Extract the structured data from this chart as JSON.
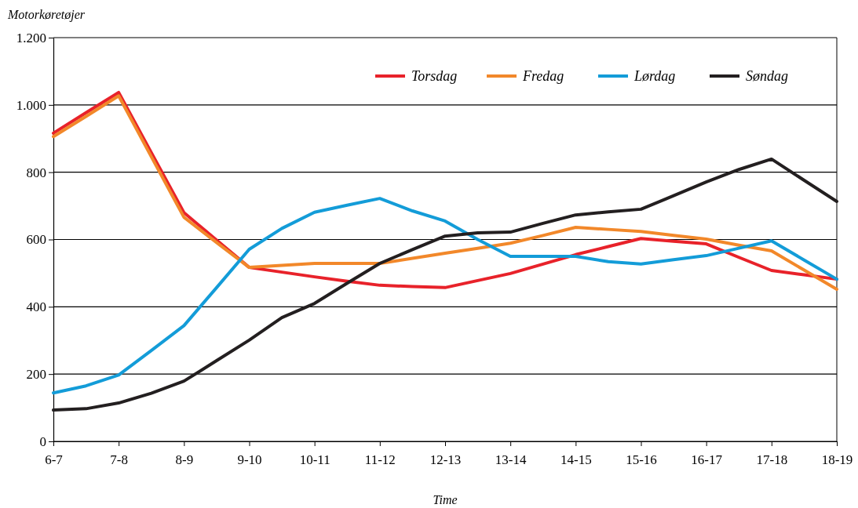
{
  "chart_data": {
    "type": "line",
    "ylabel": "Motorkøretøjer",
    "xlabel": "Time",
    "categories": [
      "6-7",
      null,
      "7-8",
      null,
      "8-9",
      null,
      "9-10",
      null,
      "10-11",
      null,
      "11-12",
      null,
      "12-13",
      null,
      "13-14",
      null,
      "14-15",
      null,
      "15-16",
      null,
      "16-17",
      null,
      "17-18",
      null,
      "18-19"
    ],
    "ylim": [
      0,
      1200
    ],
    "yticks": [
      {
        "value": 0,
        "label": "0"
      },
      {
        "value": 200,
        "label": "200"
      },
      {
        "value": 400,
        "label": "400"
      },
      {
        "value": 600,
        "label": "600"
      },
      {
        "value": 800,
        "label": "800"
      },
      {
        "value": 1000,
        "label": "1.000"
      },
      {
        "value": 1200,
        "label": "1.200"
      }
    ],
    "grid": "y",
    "legend": "top right",
    "marker": "none",
    "line_style": "solid",
    "series": [
      {
        "name": "Torsdag",
        "color": "#e8222a",
        "values": [
          916,
          977,
          1037,
          858,
          680,
          598,
          517,
          503,
          489,
          476,
          464,
          460,
          457,
          478,
          499,
          527,
          555,
          579,
          603,
          595,
          587,
          547,
          508,
          495,
          482
        ]
      },
      {
        "name": "Fredag",
        "color": "#f2882a",
        "values": [
          906,
          966,
          1027,
          846,
          666,
          591,
          517,
          523,
          529,
          529,
          529,
          544,
          559,
          574,
          589,
          612,
          636,
          630,
          624,
          612,
          601,
          583,
          566,
          509,
          452
        ]
      },
      {
        "name": "Lørdag",
        "color": "#139cd8",
        "values": [
          144,
          165,
          197,
          270,
          344,
          457,
          571,
          633,
          681,
          702,
          722,
          685,
          655,
          600,
          550,
          550,
          550,
          534,
          527,
          540,
          552,
          574,
          596,
          539,
          482
        ]
      },
      {
        "name": "Søndag",
        "color": "#231f20",
        "values": [
          93,
          97,
          114,
          143,
          179,
          240,
          301,
          368,
          410,
          470,
          529,
          570,
          610,
          620,
          622,
          648,
          673,
          682,
          690,
          730,
          771,
          808,
          839,
          776,
          713
        ]
      }
    ]
  }
}
